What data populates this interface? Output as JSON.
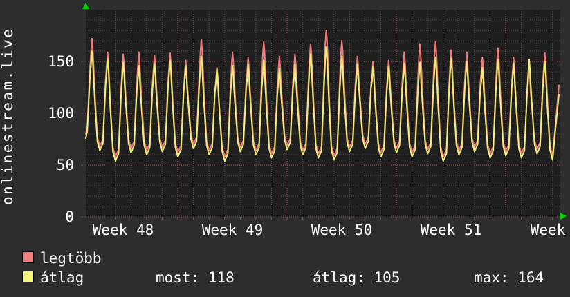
{
  "colors": {
    "background": "#2d2d2d",
    "plot_background": "#1f1f1f",
    "grid_minor": "#4a4a4a",
    "grid_major_red": "#a34b4b",
    "series_legtobb": "#ee7c7c",
    "series_atlag": "#f1ee78",
    "legend_legtobb": "#f08080",
    "legend_atlag": "#f6f47d",
    "arrow_green": "#00d400",
    "text": "#ffffff"
  },
  "ylabel_text": "onlinestream.live",
  "legend": {
    "items": [
      {
        "label": "legtöbb",
        "color": "#f08080"
      },
      {
        "label": "átlag",
        "color": "#f6f47d"
      }
    ]
  },
  "stats": [
    {
      "label": "most",
      "value": 118,
      "text": "most: 118"
    },
    {
      "label": "átlag",
      "value": 105,
      "text": "átlag: 105"
    },
    {
      "label": "max",
      "value": 164,
      "text": "max: 164"
    }
  ],
  "chart_data": {
    "type": "line",
    "title": "",
    "xlabel": "",
    "ylabel": "onlinestream.live",
    "ylim": [
      0,
      200
    ],
    "y_ticks": [
      150,
      100,
      50,
      0
    ],
    "y_major_gridlines": [
      0,
      50,
      100,
      150
    ],
    "x_tick_labels": [
      "Week 48",
      "Week 49",
      "Week 50",
      "Week 51",
      "Week"
    ],
    "grid": "dotted, minor gray per day / per 10 units, major red per week / per 50 units",
    "legend_position": "bottom-left",
    "series_names": [
      "legtöbb",
      "átlag"
    ],
    "days_per_week": 7,
    "days": [
      {
        "t": 76,
        "p": 172,
        "a": 160
      },
      {
        "t": 64,
        "p": 159,
        "a": 153
      },
      {
        "t": 54,
        "p": 157,
        "a": 149
      },
      {
        "t": 62,
        "p": 159,
        "a": 146
      },
      {
        "t": 60,
        "p": 156,
        "a": 148
      },
      {
        "t": 63,
        "p": 158,
        "a": 151
      },
      {
        "t": 58,
        "p": 151,
        "a": 146
      },
      {
        "t": 66,
        "p": 171,
        "a": 155
      },
      {
        "t": 60,
        "p": 144,
        "a": 143
      },
      {
        "t": 54,
        "p": 159,
        "a": 146
      },
      {
        "t": 63,
        "p": 154,
        "a": 147
      },
      {
        "t": 60,
        "p": 169,
        "a": 151
      },
      {
        "t": 57,
        "p": 155,
        "a": 143
      },
      {
        "t": 65,
        "p": 157,
        "a": 147
      },
      {
        "t": 60,
        "p": 167,
        "a": 157
      },
      {
        "t": 57,
        "p": 180,
        "a": 164
      },
      {
        "t": 55,
        "p": 170,
        "a": 155
      },
      {
        "t": 63,
        "p": 155,
        "a": 147
      },
      {
        "t": 66,
        "p": 150,
        "a": 145
      },
      {
        "t": 58,
        "p": 151,
        "a": 145
      },
      {
        "t": 62,
        "p": 159,
        "a": 148
      },
      {
        "t": 58,
        "p": 167,
        "a": 149
      },
      {
        "t": 61,
        "p": 169,
        "a": 154
      },
      {
        "t": 54,
        "p": 161,
        "a": 153
      },
      {
        "t": 60,
        "p": 159,
        "a": 150
      },
      {
        "t": 63,
        "p": 154,
        "a": 144
      },
      {
        "t": 57,
        "p": 163,
        "a": 152
      },
      {
        "t": 59,
        "p": 154,
        "a": 148
      },
      {
        "t": 57,
        "p": 143,
        "a": 152
      },
      {
        "t": 61,
        "p": 158,
        "a": 150
      }
    ],
    "end": {
      "t": 55,
      "p": 127,
      "a": 118
    }
  }
}
